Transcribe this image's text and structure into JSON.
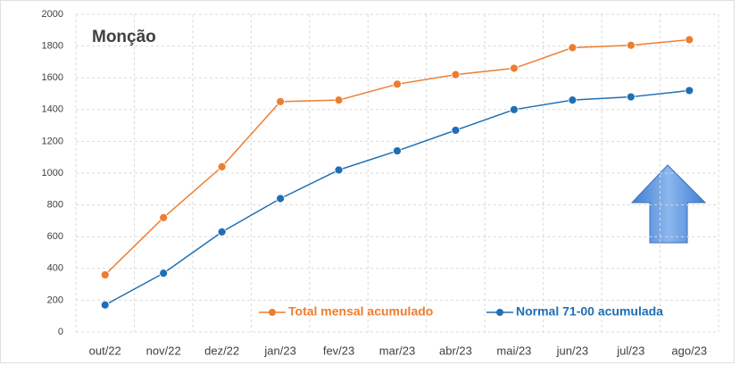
{
  "chart_data": {
    "type": "line",
    "title": "Monção",
    "categories": [
      "out/22",
      "nov/22",
      "dez/22",
      "jan/23",
      "fev/23",
      "mar/23",
      "abr/23",
      "mai/23",
      "jun/23",
      "jul/23",
      "ago/23"
    ],
    "series": [
      {
        "name": "Total mensal acumulado",
        "color": "#ed7d31",
        "values": [
          360,
          720,
          1040,
          1450,
          1460,
          1560,
          1620,
          1660,
          1790,
          1805,
          1840
        ]
      },
      {
        "name": "Normal 71-00 acumulada",
        "color": "#1f6fb5",
        "values": [
          170,
          370,
          630,
          840,
          1020,
          1140,
          1270,
          1400,
          1460,
          1480,
          1520
        ]
      }
    ],
    "ylim": [
      0,
      2000
    ],
    "yticks": [
      0,
      200,
      400,
      600,
      800,
      1000,
      1200,
      1400,
      1600,
      1800,
      2000
    ],
    "grid": true,
    "legend": "bottom"
  }
}
